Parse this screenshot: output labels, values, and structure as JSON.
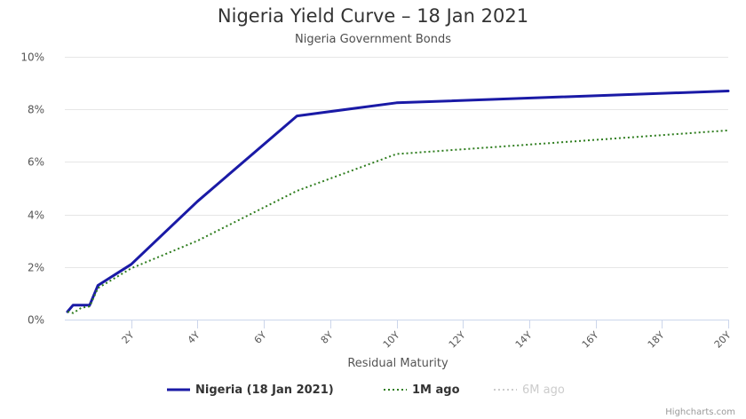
{
  "chart_data": {
    "type": "line",
    "title": "Nigeria Yield Curve – 18 Jan 2021",
    "subtitle": "Nigeria Government Bonds",
    "xlabel": "Residual Maturity",
    "ylabel": "",
    "xlim": [
      0,
      20
    ],
    "ylim": [
      0,
      10
    ],
    "x_ticks": [
      {
        "value": 2,
        "label": "2Y"
      },
      {
        "value": 4,
        "label": "4Y"
      },
      {
        "value": 6,
        "label": "6Y"
      },
      {
        "value": 8,
        "label": "8Y"
      },
      {
        "value": 10,
        "label": "10Y"
      },
      {
        "value": 12,
        "label": "12Y"
      },
      {
        "value": 14,
        "label": "14Y"
      },
      {
        "value": 16,
        "label": "16Y"
      },
      {
        "value": 18,
        "label": "18Y"
      },
      {
        "value": 20,
        "label": "20Y"
      }
    ],
    "y_ticks": [
      {
        "value": 0,
        "label": "0%"
      },
      {
        "value": 2,
        "label": "2%"
      },
      {
        "value": 4,
        "label": "4%"
      },
      {
        "value": 6,
        "label": "6%"
      },
      {
        "value": 8,
        "label": "8%"
      },
      {
        "value": 10,
        "label": "10%"
      }
    ],
    "grid": "horizontal",
    "legend_position": "bottom-center",
    "series": [
      {
        "name": "Nigeria (18 Jan 2021)",
        "color": "#1a1aa6",
        "style": "solid",
        "visible": true,
        "points": [
          [
            0.08,
            0.3
          ],
          [
            0.25,
            0.55
          ],
          [
            0.5,
            0.55
          ],
          [
            0.75,
            0.55
          ],
          [
            1.0,
            1.3
          ],
          [
            2.0,
            2.1
          ],
          [
            4.0,
            4.5
          ],
          [
            7.0,
            7.75
          ],
          [
            10.0,
            8.25
          ],
          [
            20.0,
            8.7
          ]
        ]
      },
      {
        "name": "1M ago",
        "color": "#2e7d1e",
        "style": "dotted",
        "visible": true,
        "points": [
          [
            0.08,
            0.3
          ],
          [
            0.25,
            0.25
          ],
          [
            0.5,
            0.45
          ],
          [
            0.75,
            0.5
          ],
          [
            1.0,
            1.2
          ],
          [
            2.0,
            1.95
          ],
          [
            4.0,
            3.0
          ],
          [
            7.0,
            4.9
          ],
          [
            10.0,
            6.3
          ],
          [
            20.0,
            7.2
          ]
        ]
      },
      {
        "name": "6M ago",
        "color": "#cccccc",
        "style": "dotted",
        "visible": false,
        "points": []
      }
    ]
  },
  "credits": "Highcharts.com"
}
